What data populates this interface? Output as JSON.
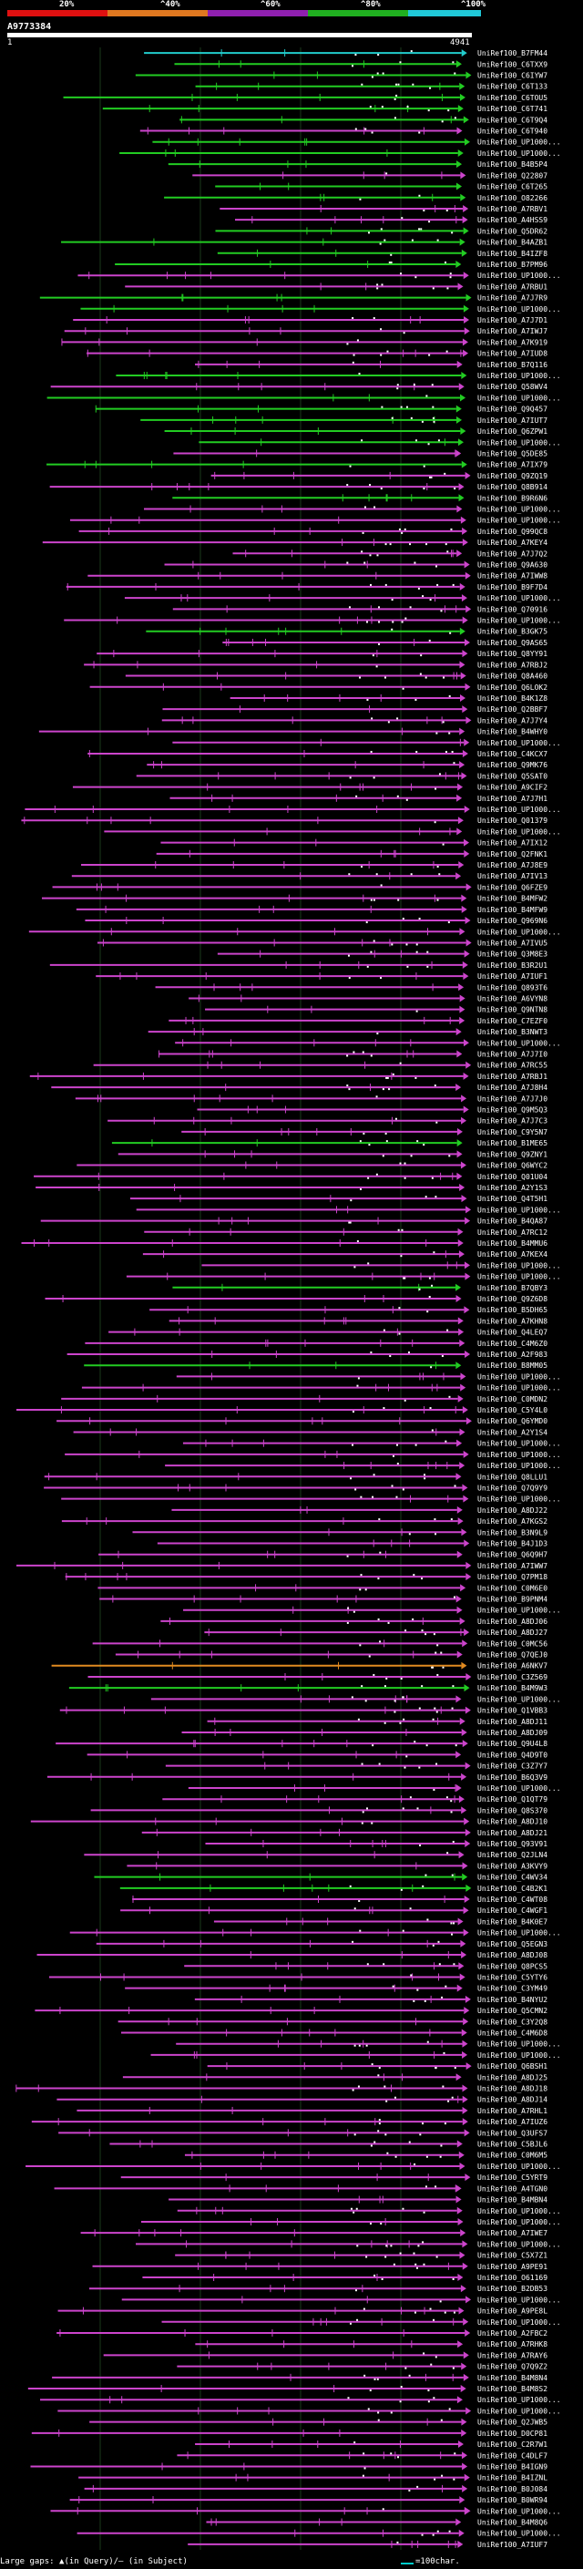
{
  "legend": {
    "labels": [
      "20%",
      "^40%",
      "^60%",
      "^80%",
      "^100%"
    ],
    "colors": [
      "#e01010",
      "#e07820",
      "#9020b0",
      "#20b020",
      "#20c8d8"
    ]
  },
  "query": {
    "id": "A9773384",
    "start": "1",
    "end": "4941"
  },
  "hit_colors": {
    "green": "#22cc22",
    "magenta": "#cc44cc",
    "cyan": "#22cccc",
    "orange": "#e08a20"
  },
  "hits": [
    {
      "label": "UniRef100_B7FM44",
      "color": "cyan"
    },
    {
      "label": "UniRef100_C6TXX9",
      "color": "green"
    },
    {
      "label": "UniRef100_C6IYW7",
      "color": "green"
    },
    {
      "label": "UniRef100_C6T133",
      "color": "green"
    },
    {
      "label": "UniRef100_C6TOU5",
      "color": "green"
    },
    {
      "label": "UniRef100_C6T741",
      "color": "green"
    },
    {
      "label": "UniRef100_C6T9Q4",
      "color": "green"
    },
    {
      "label": "UniRef100_C6T940",
      "color": "magenta"
    },
    {
      "label": "UniRef100_UP1000...",
      "color": "green"
    },
    {
      "label": "UniRef100_UP1000...",
      "color": "green"
    },
    {
      "label": "UniRef100_B4B5P4",
      "color": "green"
    },
    {
      "label": "UniRef100_Q22807",
      "color": "magenta"
    },
    {
      "label": "UniRef100_C6T265",
      "color": "green"
    },
    {
      "label": "UniRef100_O82266",
      "color": "green"
    },
    {
      "label": "UniRef100_A7RBV1",
      "color": "magenta"
    },
    {
      "label": "UniRef100_A4HSS9",
      "color": "magenta"
    },
    {
      "label": "UniRef100_Q5DR62",
      "color": "green"
    },
    {
      "label": "UniRef100_B4AZB1",
      "color": "green"
    },
    {
      "label": "UniRef100_B4IZF8",
      "color": "green"
    },
    {
      "label": "UniRef100_B7PM96",
      "color": "green"
    },
    {
      "label": "UniRef100_UP1000...",
      "color": "magenta"
    },
    {
      "label": "UniRef100_A7RBU1",
      "color": "magenta"
    },
    {
      "label": "UniRef100_A7J7R9",
      "color": "green"
    },
    {
      "label": "UniRef100_UP1000...",
      "color": "green"
    },
    {
      "label": "UniRef100_A7J7D1",
      "color": "magenta"
    },
    {
      "label": "UniRef100_A7IWJ7",
      "color": "magenta"
    },
    {
      "label": "UniRef100_A7K919",
      "color": "magenta"
    },
    {
      "label": "UniRef100_A7IUD8",
      "color": "magenta"
    },
    {
      "label": "UniRef100_B7Q116",
      "color": "magenta"
    },
    {
      "label": "UniRef100_UP1000...",
      "color": "green"
    },
    {
      "label": "UniRef100_Q58WV4",
      "color": "magenta"
    },
    {
      "label": "UniRef100_UP1000...",
      "color": "green"
    },
    {
      "label": "UniRef100_Q9Q457",
      "color": "green"
    },
    {
      "label": "UniRef100_A7IUT7",
      "color": "green"
    },
    {
      "label": "UniRef100_Q6ZPW1",
      "color": "green"
    },
    {
      "label": "UniRef100_UP1000...",
      "color": "green"
    },
    {
      "label": "UniRef100_Q5DE85",
      "color": "magenta"
    },
    {
      "label": "UniRef100_A7IX79",
      "color": "green"
    },
    {
      "label": "UniRef100_Q9ZQ19",
      "color": "magenta"
    },
    {
      "label": "UniRef100_Q8B914",
      "color": "magenta"
    },
    {
      "label": "UniRef100_B9R6N6",
      "color": "green"
    },
    {
      "label": "UniRef100_UP1000...",
      "color": "magenta"
    },
    {
      "label": "UniRef100_UP1000...",
      "color": "magenta"
    },
    {
      "label": "UniRef100_Q99QC8",
      "color": "magenta"
    },
    {
      "label": "UniRef100_A7KEY4",
      "color": "magenta"
    },
    {
      "label": "UniRef100_A7J7Q2",
      "color": "magenta"
    },
    {
      "label": "UniRef100_Q9A630",
      "color": "magenta"
    },
    {
      "label": "UniRef100_A7IWW8",
      "color": "magenta"
    },
    {
      "label": "UniRef100_B9F7D4",
      "color": "magenta"
    },
    {
      "label": "UniRef100_UP1000...",
      "color": "magenta"
    },
    {
      "label": "UniRef100_Q70916",
      "color": "magenta"
    },
    {
      "label": "UniRef100_UP1000...",
      "color": "magenta"
    },
    {
      "label": "UniRef100_B3GK75",
      "color": "green"
    },
    {
      "label": "UniRef100_Q9AS65",
      "color": "magenta"
    },
    {
      "label": "UniRef100_Q8YY91",
      "color": "magenta"
    },
    {
      "label": "UniRef100_A7RBJ2",
      "color": "magenta"
    },
    {
      "label": "UniRef100_Q8A460",
      "color": "magenta"
    },
    {
      "label": "UniRef100_Q6LOK2",
      "color": "magenta"
    },
    {
      "label": "UniRef100_B4K1Z8",
      "color": "magenta"
    },
    {
      "label": "UniRef100_Q2BBF7",
      "color": "magenta"
    },
    {
      "label": "UniRef100_A7J7Y4",
      "color": "magenta"
    },
    {
      "label": "UniRef100_B4WHY0",
      "color": "magenta"
    },
    {
      "label": "UniRef100_UP1000...",
      "color": "magenta"
    },
    {
      "label": "UniRef100_C4KCX7",
      "color": "magenta"
    },
    {
      "label": "UniRef100_Q9MK76",
      "color": "magenta"
    },
    {
      "label": "UniRef100_Q5SAT0",
      "color": "magenta"
    },
    {
      "label": "UniRef100_A9CIF2",
      "color": "magenta"
    },
    {
      "label": "UniRef100_A7J7H1",
      "color": "magenta"
    },
    {
      "label": "UniRef100_UP1000...",
      "color": "magenta"
    },
    {
      "label": "UniRef100_Q01379",
      "color": "magenta"
    },
    {
      "label": "UniRef100_UP1000...",
      "color": "magenta"
    },
    {
      "label": "UniRef100_A7IX12",
      "color": "magenta"
    },
    {
      "label": "UniRef100_Q2FNK1",
      "color": "magenta"
    },
    {
      "label": "UniRef100_A7J8E9",
      "color": "magenta"
    },
    {
      "label": "UniRef100_A7IV13",
      "color": "magenta"
    },
    {
      "label": "UniRef100_Q6FZE9",
      "color": "magenta"
    },
    {
      "label": "UniRef100_B4MFW2",
      "color": "magenta"
    },
    {
      "label": "UniRef100_B4MFW9",
      "color": "magenta"
    },
    {
      "label": "UniRef100_Q969N6",
      "color": "magenta"
    },
    {
      "label": "UniRef100_UP1000...",
      "color": "magenta"
    },
    {
      "label": "UniRef100_A7IVU5",
      "color": "magenta"
    },
    {
      "label": "UniRef100_Q3M8E3",
      "color": "magenta"
    },
    {
      "label": "UniRef100_B3R2U1",
      "color": "magenta"
    },
    {
      "label": "UniRef100_A7IUF1",
      "color": "magenta"
    },
    {
      "label": "UniRef100_Q893T6",
      "color": "magenta"
    },
    {
      "label": "UniRef100_A6VYN8",
      "color": "magenta"
    },
    {
      "label": "UniRef100_Q9NTN8",
      "color": "magenta"
    },
    {
      "label": "UniRef100_C7EZF0",
      "color": "magenta"
    },
    {
      "label": "UniRef100_B3NWT3",
      "color": "magenta"
    },
    {
      "label": "UniRef100_UP1000...",
      "color": "magenta"
    },
    {
      "label": "UniRef100_A7J7I0",
      "color": "magenta"
    },
    {
      "label": "UniRef100_A7RC55",
      "color": "magenta"
    },
    {
      "label": "UniRef100_A7RBJ1",
      "color": "magenta"
    },
    {
      "label": "UniRef100_A7J8H4",
      "color": "magenta"
    },
    {
      "label": "UniRef100_A7J7J0",
      "color": "magenta"
    },
    {
      "label": "UniRef100_Q9M5Q3",
      "color": "magenta"
    },
    {
      "label": "UniRef100_A7J7C3",
      "color": "magenta"
    },
    {
      "label": "UniRef100_C9Y5N7",
      "color": "magenta"
    },
    {
      "label": "UniRef100_B1ME65",
      "color": "green"
    },
    {
      "label": "UniRef100_Q9ZNY1",
      "color": "magenta"
    },
    {
      "label": "UniRef100_Q6WYC2",
      "color": "magenta"
    },
    {
      "label": "UniRef100_Q01U04",
      "color": "magenta"
    },
    {
      "label": "UniRef100_A2Y1S3",
      "color": "magenta"
    },
    {
      "label": "UniRef100_Q4T5H1",
      "color": "magenta"
    },
    {
      "label": "UniRef100_UP1000...",
      "color": "magenta"
    },
    {
      "label": "UniRef100_B4QA87",
      "color": "magenta"
    },
    {
      "label": "UniRef100_A7RC12",
      "color": "magenta"
    },
    {
      "label": "UniRef100_B4MMU6",
      "color": "magenta"
    },
    {
      "label": "UniRef100_A7KEX4",
      "color": "magenta"
    },
    {
      "label": "UniRef100_UP1000...",
      "color": "magenta"
    },
    {
      "label": "UniRef100_UP1000...",
      "color": "magenta"
    },
    {
      "label": "UniRef100_B7QBY3",
      "color": "green"
    },
    {
      "label": "UniRef100_Q9Z6D8",
      "color": "magenta"
    },
    {
      "label": "UniRef100_B5DH65",
      "color": "magenta"
    },
    {
      "label": "UniRef100_A7KHN8",
      "color": "magenta"
    },
    {
      "label": "UniRef100_Q4LEQ7",
      "color": "magenta"
    },
    {
      "label": "UniRef100_C4M6Z0",
      "color": "magenta"
    },
    {
      "label": "UniRef100_A2F983",
      "color": "magenta"
    },
    {
      "label": "UniRef100_B8MM05",
      "color": "green"
    },
    {
      "label": "UniRef100_UP1000...",
      "color": "magenta"
    },
    {
      "label": "UniRef100_UP1000...",
      "color": "magenta"
    },
    {
      "label": "UniRef100_C0MDN2",
      "color": "magenta"
    },
    {
      "label": "UniRef100_C5Y4L0",
      "color": "magenta"
    },
    {
      "label": "UniRef100_Q6YMD0",
      "color": "magenta"
    },
    {
      "label": "UniRef100_A2Y1S4",
      "color": "magenta"
    },
    {
      "label": "UniRef100_UP1000...",
      "color": "magenta"
    },
    {
      "label": "UniRef100_UP1000...",
      "color": "magenta"
    },
    {
      "label": "UniRef100_UP1000...",
      "color": "magenta"
    },
    {
      "label": "UniRef100_Q8LLU1",
      "color": "magenta"
    },
    {
      "label": "UniRef100_Q7Q9Y9",
      "color": "magenta"
    },
    {
      "label": "UniRef100_UP1000...",
      "color": "magenta"
    },
    {
      "label": "UniRef100_A8DJ22",
      "color": "magenta"
    },
    {
      "label": "UniRef100_A7KGS2",
      "color": "magenta"
    },
    {
      "label": "UniRef100_B3N9L9",
      "color": "magenta"
    },
    {
      "label": "UniRef100_B4J1D3",
      "color": "magenta"
    },
    {
      "label": "UniRef100_Q6Q9H7",
      "color": "magenta"
    },
    {
      "label": "UniRef100_A7IWW7",
      "color": "magenta"
    },
    {
      "label": "UniRef100_Q7PM18",
      "color": "magenta"
    },
    {
      "label": "UniRef100_C0M6E0",
      "color": "magenta"
    },
    {
      "label": "UniRef100_B9PNM4",
      "color": "magenta"
    },
    {
      "label": "UniRef100_UP1000...",
      "color": "magenta"
    },
    {
      "label": "UniRef100_A8DJ06",
      "color": "magenta"
    },
    {
      "label": "UniRef100_A8DJ27",
      "color": "magenta"
    },
    {
      "label": "UniRef100_C0MC56",
      "color": "magenta"
    },
    {
      "label": "UniRef100_Q7QEJ0",
      "color": "magenta"
    },
    {
      "label": "UniRef100_A6NKV7",
      "color": "orange"
    },
    {
      "label": "UniRef100_C3Z569",
      "color": "magenta"
    },
    {
      "label": "UniRef100_B4M9W3",
      "color": "green"
    },
    {
      "label": "UniRef100_UP1000...",
      "color": "magenta"
    },
    {
      "label": "UniRef100_Q1VBB3",
      "color": "magenta"
    },
    {
      "label": "UniRef100_A8DJ11",
      "color": "magenta"
    },
    {
      "label": "UniRef100_A8DJ09",
      "color": "magenta"
    },
    {
      "label": "UniRef100_Q9U4L8",
      "color": "magenta"
    },
    {
      "label": "UniRef100_Q4D9T0",
      "color": "magenta"
    },
    {
      "label": "UniRef100_C3Z7Y7",
      "color": "magenta"
    },
    {
      "label": "UniRef100_B6Q3V9",
      "color": "magenta"
    },
    {
      "label": "UniRef100_UP1000...",
      "color": "magenta"
    },
    {
      "label": "UniRef100_Q1QT79",
      "color": "magenta"
    },
    {
      "label": "UniRef100_Q8S370",
      "color": "magenta"
    },
    {
      "label": "UniRef100_A8DJ10",
      "color": "magenta"
    },
    {
      "label": "UniRef100_A8DJ21",
      "color": "magenta"
    },
    {
      "label": "UniRef100_Q93V91",
      "color": "magenta"
    },
    {
      "label": "UniRef100_Q2JLN4",
      "color": "magenta"
    },
    {
      "label": "UniRef100_A3KVY9",
      "color": "magenta"
    },
    {
      "label": "UniRef100_C4WV34",
      "color": "green"
    },
    {
      "label": "UniRef100_C4B2K1",
      "color": "green"
    },
    {
      "label": "UniRef100_C4WT08",
      "color": "magenta"
    },
    {
      "label": "UniRef100_C4WGF1",
      "color": "magenta"
    },
    {
      "label": "UniRef100_B4K0E7",
      "color": "magenta"
    },
    {
      "label": "UniRef100_UP1000...",
      "color": "magenta"
    },
    {
      "label": "UniRef100_Q5EGN3",
      "color": "magenta"
    },
    {
      "label": "UniRef100_A8DJ08",
      "color": "magenta"
    },
    {
      "label": "UniRef100_Q8PCS5",
      "color": "magenta"
    },
    {
      "label": "UniRef100_C5YTY6",
      "color": "magenta"
    },
    {
      "label": "UniRef100_C3YM49",
      "color": "magenta"
    },
    {
      "label": "UniRef100_B4NYU2",
      "color": "magenta"
    },
    {
      "label": "UniRef100_Q5CMN2",
      "color": "magenta"
    },
    {
      "label": "UniRef100_C3Y2Q8",
      "color": "magenta"
    },
    {
      "label": "UniRef100_C4M6D8",
      "color": "magenta"
    },
    {
      "label": "UniRef100_UP1000...",
      "color": "magenta"
    },
    {
      "label": "UniRef100_UP1000...",
      "color": "magenta"
    },
    {
      "label": "UniRef100_Q6BSH1",
      "color": "magenta"
    },
    {
      "label": "UniRef100_A8DJ25",
      "color": "magenta"
    },
    {
      "label": "UniRef100_A8DJ18",
      "color": "magenta"
    },
    {
      "label": "UniRef100_A8DJ14",
      "color": "magenta"
    },
    {
      "label": "UniRef100_A7RHL1",
      "color": "magenta"
    },
    {
      "label": "UniRef100_A7IUZ6",
      "color": "magenta"
    },
    {
      "label": "UniRef100_Q3UFS7",
      "color": "magenta"
    },
    {
      "label": "UniRef100_C5BJL6",
      "color": "magenta"
    },
    {
      "label": "UniRef100_C0M6M5",
      "color": "magenta"
    },
    {
      "label": "UniRef100_UP1000...",
      "color": "magenta"
    },
    {
      "label": "UniRef100_C5YRT9",
      "color": "magenta"
    },
    {
      "label": "UniRef100_A4TGN0",
      "color": "magenta"
    },
    {
      "label": "UniRef100_B4MBN4",
      "color": "magenta"
    },
    {
      "label": "UniRef100_UP1000...",
      "color": "magenta"
    },
    {
      "label": "UniRef100_UP1000...",
      "color": "magenta"
    },
    {
      "label": "UniRef100_A7IWE7",
      "color": "magenta"
    },
    {
      "label": "UniRef100_UP1000...",
      "color": "magenta"
    },
    {
      "label": "UniRef100_C5X7Z1",
      "color": "magenta"
    },
    {
      "label": "UniRef100_A9PE91",
      "color": "magenta"
    },
    {
      "label": "UniRef100_O61169",
      "color": "magenta"
    },
    {
      "label": "UniRef100_B2DB53",
      "color": "magenta"
    },
    {
      "label": "UniRef100_UP1000...",
      "color": "magenta"
    },
    {
      "label": "UniRef100_A9PE8L",
      "color": "magenta"
    },
    {
      "label": "UniRef100_UP1000...",
      "color": "magenta"
    },
    {
      "label": "UniRef100_A2FBC2",
      "color": "magenta"
    },
    {
      "label": "UniRef100_A7RHK8",
      "color": "magenta"
    },
    {
      "label": "UniRef100_A7RAY6",
      "color": "magenta"
    },
    {
      "label": "UniRef100_Q7Q9Z2",
      "color": "magenta"
    },
    {
      "label": "UniRef100_B4M8N4",
      "color": "magenta"
    },
    {
      "label": "UniRef100_B4M8S2",
      "color": "magenta"
    },
    {
      "label": "UniRef100_UP1000...",
      "color": "magenta"
    },
    {
      "label": "UniRef100_UP1000...",
      "color": "magenta"
    },
    {
      "label": "UniRef100_Q2JWB5",
      "color": "magenta"
    },
    {
      "label": "UniRef100_D0CP81",
      "color": "magenta"
    },
    {
      "label": "UniRef100_C2R7W1",
      "color": "magenta"
    },
    {
      "label": "UniRef100_C4DLF7",
      "color": "magenta"
    },
    {
      "label": "UniRef100_B4IGN9",
      "color": "magenta"
    },
    {
      "label": "UniRef100_B4IZNL",
      "color": "magenta"
    },
    {
      "label": "UniRef100_B0J084",
      "color": "magenta"
    },
    {
      "label": "UniRef100_B0WR94",
      "color": "magenta"
    },
    {
      "label": "UniRef100_UP1000...",
      "color": "magenta"
    },
    {
      "label": "UniRef100_B4M8Q6",
      "color": "magenta"
    },
    {
      "label": "UniRef100_UP1000...",
      "color": "magenta"
    },
    {
      "label": "UniRef100_A7IUF7",
      "color": "magenta"
    }
  ],
  "footer": {
    "text": "Large gaps: ▲(in Query)/— (in Subject)",
    "scale_label": "=100char."
  }
}
